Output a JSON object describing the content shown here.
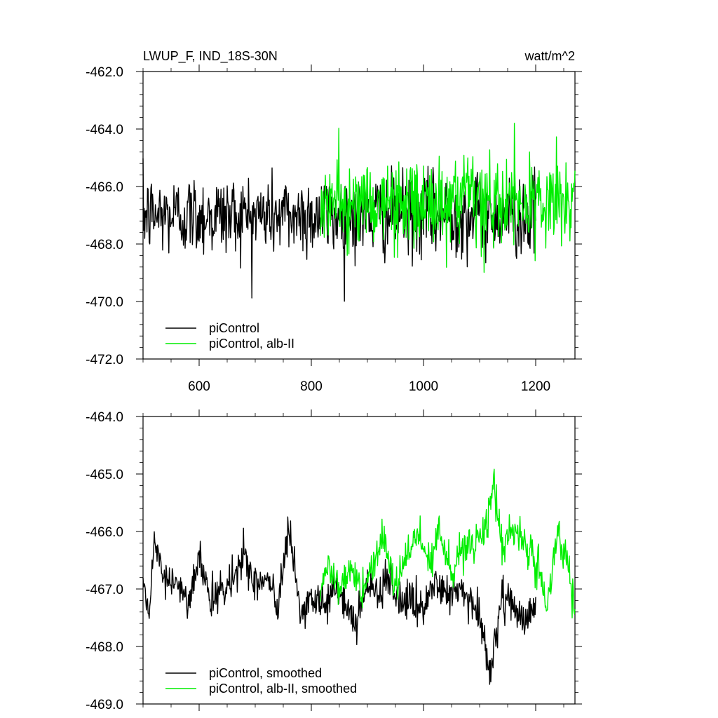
{
  "chart_data": [
    {
      "type": "line",
      "title": "LWUP_F, IND_18S-30N",
      "units": "watt/m^2",
      "xlabel": "",
      "ylabel": "",
      "xlim": [
        500,
        1270
      ],
      "ylim": [
        -472.0,
        -462.0
      ],
      "xticks": [
        600,
        800,
        1000,
        1200
      ],
      "yticks": [
        -462.0,
        -464.0,
        -466.0,
        -468.0,
        -470.0,
        -472.0
      ],
      "ytick_labels": [
        "-462.0",
        "-464.0",
        "-466.0",
        "-468.0",
        "-470.0",
        "-472.0"
      ],
      "xtick_labels": [
        "600",
        "800",
        "1000",
        "1200"
      ],
      "legend_position": "bottom-left",
      "series": [
        {
          "name": "piControl",
          "color": "#000000",
          "x_start": 500,
          "x_step": 1,
          "x_end": 1200,
          "mean": -467.0,
          "noise": 1.15,
          "range": [
            -470.8,
            -464.4
          ]
        },
        {
          "name": "piControl, alb-II",
          "color": "#00ee00",
          "x_start": 816,
          "x_step": 1,
          "x_end": 1270,
          "mean": -466.6,
          "noise": 1.2,
          "range": [
            -470.1,
            -463.8
          ]
        }
      ]
    },
    {
      "type": "line",
      "title": "",
      "units": "",
      "xlabel": "",
      "ylabel": "",
      "xlim": [
        500,
        1270
      ],
      "ylim": [
        -469.0,
        -464.0
      ],
      "xticks": [
        600,
        800,
        1000,
        1200
      ],
      "yticks": [
        -464.0,
        -465.0,
        -466.0,
        -467.0,
        -468.0,
        -469.0
      ],
      "ytick_labels": [
        "-464.0",
        "-465.0",
        "-466.0",
        "-467.0",
        "-468.0",
        "-469.0"
      ],
      "legend_position": "bottom-left",
      "series": [
        {
          "name": "piControl, smoothed",
          "color": "#000000",
          "x_start": 500,
          "x_step": 1,
          "x_end": 1200,
          "anchors_x": [
            500,
            510,
            520,
            540,
            560,
            580,
            600,
            620,
            650,
            680,
            700,
            720,
            740,
            760,
            780,
            800,
            820,
            840,
            860,
            880,
            900,
            920,
            940,
            960,
            980,
            1000,
            1020,
            1040,
            1060,
            1080,
            1100,
            1120,
            1140,
            1160,
            1180,
            1200
          ],
          "anchors_y": [
            -466.9,
            -467.5,
            -466.2,
            -466.9,
            -466.8,
            -467.3,
            -466.5,
            -467.1,
            -467.0,
            -466.4,
            -466.9,
            -466.8,
            -467.3,
            -466.0,
            -467.4,
            -467.2,
            -467.3,
            -466.9,
            -467.2,
            -467.5,
            -466.9,
            -467.1,
            -466.8,
            -467.3,
            -467.2,
            -467.4,
            -466.9,
            -467.1,
            -467.0,
            -467.2,
            -467.6,
            -468.4,
            -467.2,
            -467.3,
            -467.5,
            -467.2
          ]
        },
        {
          "name": "piControl, alb-II, smoothed",
          "color": "#00ee00",
          "x_start": 816,
          "x_step": 1,
          "x_end": 1270,
          "anchors_x": [
            816,
            830,
            850,
            870,
            890,
            910,
            930,
            950,
            970,
            990,
            1010,
            1030,
            1050,
            1070,
            1090,
            1110,
            1125,
            1140,
            1160,
            1180,
            1200,
            1220,
            1240,
            1260,
            1270
          ],
          "anchors_y": [
            -467.2,
            -466.5,
            -467.0,
            -466.6,
            -467.1,
            -466.5,
            -466.2,
            -467.0,
            -466.4,
            -466.0,
            -466.6,
            -466.0,
            -466.8,
            -466.3,
            -466.2,
            -466.0,
            -465.1,
            -466.2,
            -466.0,
            -466.2,
            -466.4,
            -467.4,
            -466.0,
            -466.8,
            -467.4
          ]
        }
      ]
    }
  ]
}
